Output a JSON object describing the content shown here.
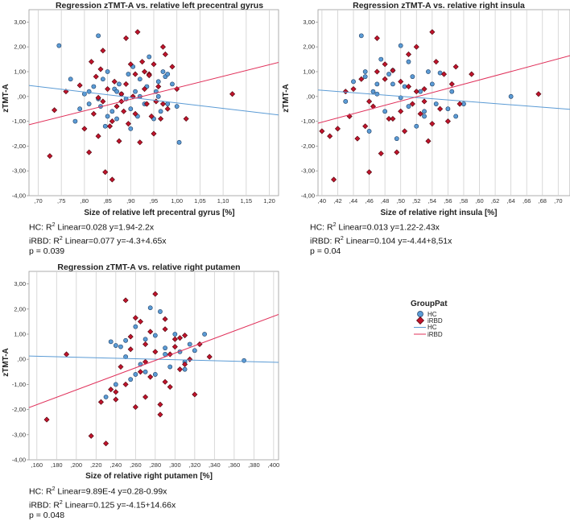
{
  "legend": {
    "title": "GroupPat",
    "items": [
      {
        "label": "HC",
        "kind": "marker",
        "shape": "circle",
        "color": "#5b9bd5"
      },
      {
        "label": "iRBD",
        "kind": "marker",
        "shape": "diamond",
        "color": "#c0142c"
      },
      {
        "label": "HC",
        "kind": "line",
        "color": "#5b9bd5"
      },
      {
        "label": "iRBD",
        "kind": "line",
        "color": "#e0305a"
      }
    ]
  },
  "colors": {
    "hc_fill": "#5b9bd5",
    "hc_stroke": "#1f3e63",
    "irbd_fill": "#c0142c",
    "irbd_stroke": "#4a0008",
    "hc_line": "#5b9bd5",
    "irbd_line": "#e0305a",
    "grid": "#cfcfcf",
    "frame": "#9a9a9a"
  },
  "chart_data": [
    {
      "type": "scatter",
      "title": "Regression zTMT-A vs. relative left precentral gyrus",
      "xlabel": "Size of relative left precentral gyrus [%]",
      "ylabel": "zTMT-A",
      "xlim": [
        0.68,
        1.22
      ],
      "ylim": [
        -4.0,
        3.5
      ],
      "xticks": [
        0.7,
        0.75,
        0.8,
        0.85,
        0.9,
        0.95,
        1.0,
        1.05,
        1.1,
        1.15,
        1.2
      ],
      "xtick_labels": [
        ",70",
        ",75",
        ",80",
        ",85",
        ",90",
        ",95",
        "1,00",
        "1,05",
        "1,10",
        "1,15",
        "1,20"
      ],
      "yticks": [
        -4,
        -3,
        -2,
        -1,
        0,
        1,
        2,
        3
      ],
      "ytick_labels": [
        "-4,00",
        "-3,00",
        "-2,00",
        "-1,00",
        ",00",
        "1,00",
        "2,00",
        "3,00"
      ],
      "stats": {
        "hc_prefix": "HC: R",
        "hc_suffix": " Linear=0.028 y=1.94-2.2x",
        "irbd_prefix": "iRBD: R",
        "irbd_suffix": " Linear=0.077 y=-4.3+4.65x",
        "sup": "2",
        "p": "p = 0.039"
      },
      "fits": [
        {
          "name": "HC",
          "intercept": 1.94,
          "slope": -2.2
        },
        {
          "name": "iRBD",
          "intercept": -4.3,
          "slope": 4.65
        }
      ],
      "series": [
        {
          "name": "HC",
          "marker": "circle",
          "x": [
            0.745,
            0.77,
            0.78,
            0.79,
            0.8,
            0.81,
            0.82,
            0.83,
            0.835,
            0.84,
            0.845,
            0.85,
            0.86,
            0.865,
            0.87,
            0.875,
            0.88,
            0.89,
            0.895,
            0.9,
            0.905,
            0.91,
            0.915,
            0.92,
            0.93,
            0.935,
            0.94,
            0.95,
            0.955,
            0.96,
            0.965,
            0.97,
            0.975,
            0.98,
            0.99,
            1.0,
            1.005,
            0.83,
            0.85,
            0.87,
            0.92,
            0.96,
            0.98,
            0.81,
            0.9
          ],
          "y": [
            2.05,
            0.7,
            -1.0,
            -0.5,
            0.1,
            0.2,
            0.4,
            2.45,
            -0.4,
            0.7,
            -1.2,
            1.0,
            -0.6,
            0.3,
            -0.9,
            0.5,
            0.1,
            -0.1,
            0.9,
            -0.5,
            1.2,
            0.2,
            -0.8,
            0.7,
            -0.3,
            0.4,
            1.6,
            -0.9,
            0.2,
            0.0,
            -0.6,
            1.0,
            0.8,
            -0.3,
            0.5,
            -0.4,
            -1.85,
            -0.1,
            -0.8,
            0.2,
            0.0,
            0.6,
            0.9,
            -0.3,
            -1.3
          ]
        },
        {
          "name": "iRBD",
          "marker": "diamond",
          "x": [
            0.725,
            0.735,
            0.76,
            0.79,
            0.8,
            0.81,
            0.815,
            0.82,
            0.825,
            0.83,
            0.835,
            0.84,
            0.845,
            0.85,
            0.855,
            0.86,
            0.865,
            0.87,
            0.875,
            0.88,
            0.885,
            0.89,
            0.895,
            0.9,
            0.905,
            0.91,
            0.915,
            0.92,
            0.925,
            0.93,
            0.935,
            0.94,
            0.945,
            0.95,
            0.955,
            0.96,
            0.965,
            0.97,
            0.975,
            0.98,
            0.99,
            1.0,
            1.02,
            1.12,
            0.84,
            0.86,
            0.88,
            0.91,
            0.93,
            0.95,
            0.97,
            0.83,
            0.89,
            0.94
          ],
          "y": [
            -2.4,
            -0.55,
            0.2,
            0.45,
            -1.3,
            -2.25,
            1.4,
            -0.7,
            0.8,
            -1.6,
            1.1,
            -0.2,
            -3.05,
            0.3,
            -1.2,
            -3.35,
            0.6,
            -0.4,
            -1.8,
            0.1,
            -0.6,
            2.35,
            -1.1,
            1.3,
            0.0,
            0.9,
            2.6,
            -1.85,
            1.4,
            0.3,
            -0.3,
            0.9,
            -0.8,
            1.3,
            -0.2,
            0.4,
            -0.9,
            2.0,
            1.7,
            -0.5,
            1.2,
            0.3,
            -0.9,
            0.1,
            1.85,
            -1.0,
            -0.2,
            -0.7,
            1.0,
            -1.5,
            -0.3,
            -0.05,
            0.5,
            0.85
          ]
        }
      ]
    },
    {
      "type": "scatter",
      "title": "Regression zTMT-A vs. relative right insula",
      "xlabel": "Size of relative right insula [%]",
      "ylabel": "zTMT-A",
      "xlim": [
        0.395,
        0.715
      ],
      "ylim": [
        -4.0,
        3.5
      ],
      "xticks": [
        0.4,
        0.42,
        0.44,
        0.46,
        0.48,
        0.5,
        0.52,
        0.54,
        0.56,
        0.58,
        0.6,
        0.62,
        0.64,
        0.66,
        0.68,
        0.7
      ],
      "xtick_labels": [
        ",40",
        ",42",
        ",44",
        ",46",
        ",48",
        ",50",
        ",52",
        ",54",
        ",56",
        ",58",
        ",60",
        ",62",
        ",64",
        ",66",
        ",68",
        ",70"
      ],
      "yticks": [
        -4,
        -3,
        -2,
        -1,
        0,
        1,
        2,
        3
      ],
      "ytick_labels": [
        "-4,00",
        "-3,00",
        "-2,00",
        "-1,00",
        ",00",
        "1,00",
        "2,00",
        "3,00"
      ],
      "stats": {
        "hc_prefix": "HC: R",
        "hc_suffix": " Linear=0.013 y=1.22-2.43x",
        "irbd_prefix": "iRBD: R",
        "irbd_suffix": " Linear=0.104 y=-4.44+8,51x",
        "sup": "2",
        "p": "p = 0.04"
      },
      "fits": [
        {
          "name": "HC",
          "intercept": 1.22,
          "slope": -2.43
        },
        {
          "name": "iRBD",
          "intercept": -4.44,
          "slope": 8.51
        }
      ],
      "series": [
        {
          "name": "HC",
          "marker": "circle",
          "x": [
            0.43,
            0.44,
            0.45,
            0.455,
            0.46,
            0.465,
            0.47,
            0.475,
            0.48,
            0.485,
            0.49,
            0.495,
            0.5,
            0.505,
            0.51,
            0.515,
            0.52,
            0.525,
            0.53,
            0.535,
            0.54,
            0.545,
            0.55,
            0.56,
            0.565,
            0.57,
            0.58,
            0.64,
            0.47,
            0.49,
            0.51,
            0.53,
            0.455,
            0.5
          ],
          "y": [
            -0.2,
            0.6,
            2.45,
            0.8,
            -1.4,
            0.2,
            0.5,
            1.5,
            -0.6,
            0.9,
            1.05,
            -1.7,
            2.05,
            0.4,
            -0.4,
            0.8,
            -1.2,
            0.2,
            -0.8,
            1.0,
            0.5,
            -0.3,
            0.95,
            -0.5,
            0.2,
            -0.8,
            -0.3,
            0.0,
            0.1,
            0.5,
            1.4,
            -0.6,
            1.0,
            -0.05
          ]
        },
        {
          "name": "iRBD",
          "marker": "diamond",
          "x": [
            0.4,
            0.41,
            0.415,
            0.42,
            0.43,
            0.435,
            0.44,
            0.445,
            0.45,
            0.455,
            0.46,
            0.465,
            0.47,
            0.475,
            0.48,
            0.485,
            0.49,
            0.495,
            0.5,
            0.505,
            0.51,
            0.515,
            0.52,
            0.525,
            0.53,
            0.535,
            0.54,
            0.545,
            0.55,
            0.555,
            0.56,
            0.565,
            0.57,
            0.575,
            0.59,
            0.675,
            0.46,
            0.48,
            0.5,
            0.52,
            0.54,
            0.47,
            0.49,
            0.51,
            0.53
          ],
          "y": [
            -1.4,
            -1.6,
            -3.35,
            -1.3,
            0.2,
            -0.8,
            0.3,
            -1.7,
            0.7,
            -1.2,
            -3.05,
            -0.4,
            2.35,
            -2.3,
            1.3,
            -0.9,
            1.05,
            -2.25,
            0.6,
            -1.4,
            1.7,
            -0.3,
            2.0,
            -0.7,
            0.3,
            -1.8,
            2.6,
            1.4,
            -0.5,
            0.9,
            -1.0,
            0.5,
            1.2,
            -0.3,
            0.9,
            0.1,
            -0.2,
            0.7,
            -0.6,
            0.2,
            -1.1,
            1.0,
            -0.9,
            0.4,
            -0.2
          ]
        }
      ]
    },
    {
      "type": "scatter",
      "title": "Regression zTMT-A vs. relative right putamen",
      "xlabel": "Size of relative right putamen [%]",
      "ylabel": "zTMT-A",
      "xlim": [
        0.152,
        0.405
      ],
      "ylim": [
        -4.0,
        3.5
      ],
      "xticks": [
        0.16,
        0.18,
        0.2,
        0.22,
        0.24,
        0.26,
        0.28,
        0.3,
        0.32,
        0.34,
        0.36,
        0.38,
        0.4
      ],
      "xtick_labels": [
        ",160",
        ",180",
        ",200",
        ",220",
        ",240",
        ",260",
        ",280",
        ",300",
        ",320",
        ",340",
        ",360",
        ",380",
        ",400"
      ],
      "yticks": [
        -4,
        -3,
        -2,
        -1,
        0,
        1,
        2,
        3
      ],
      "ytick_labels": [
        "-4,00",
        "-3,00",
        "-2,00",
        "-1,00",
        ",00",
        "1,00",
        "2,00",
        "3,00"
      ],
      "stats": {
        "hc_prefix": "HC: R",
        "hc_suffix": " Linear=9.89E-4 y=0.28-0.99x",
        "irbd_prefix": "iRBD: R",
        "irbd_suffix": " Linear=0.125 y=-4.15+14.66x",
        "sup": "2",
        "p": "p = 0.048"
      },
      "fits": [
        {
          "name": "HC",
          "intercept": 0.28,
          "slope": -0.99
        },
        {
          "name": "iRBD",
          "intercept": -4.15,
          "slope": 14.66
        }
      ],
      "series": [
        {
          "name": "HC",
          "marker": "circle",
          "x": [
            0.23,
            0.235,
            0.24,
            0.245,
            0.25,
            0.255,
            0.26,
            0.265,
            0.27,
            0.275,
            0.28,
            0.285,
            0.29,
            0.295,
            0.3,
            0.305,
            0.31,
            0.315,
            0.32,
            0.33,
            0.37,
            0.25,
            0.27,
            0.29,
            0.31,
            0.26,
            0.28,
            0.24
          ],
          "y": [
            -1.5,
            0.7,
            -1.0,
            0.5,
            0.1,
            -0.8,
            1.3,
            -0.2,
            0.8,
            2.05,
            -0.6,
            1.9,
            0.2,
            -0.3,
            1.0,
            0.3,
            -0.1,
            0.6,
            0.35,
            1.0,
            -0.05,
            0.75,
            -0.5,
            0.45,
            -0.4,
            -0.6,
            0.95,
            0.55
          ]
        },
        {
          "name": "iRBD",
          "marker": "diamond",
          "x": [
            0.17,
            0.19,
            0.215,
            0.225,
            0.23,
            0.235,
            0.24,
            0.245,
            0.25,
            0.255,
            0.26,
            0.265,
            0.27,
            0.275,
            0.28,
            0.285,
            0.29,
            0.295,
            0.3,
            0.305,
            0.31,
            0.315,
            0.32,
            0.325,
            0.335,
            0.25,
            0.26,
            0.27,
            0.28,
            0.29,
            0.3,
            0.24,
            0.255,
            0.265,
            0.275,
            0.285,
            0.295,
            0.305,
            0.27,
            0.29,
            0.31
          ],
          "y": [
            -2.4,
            0.2,
            -3.05,
            -1.7,
            -3.35,
            -1.2,
            -1.6,
            -0.3,
            2.35,
            0.4,
            -1.9,
            1.5,
            0.6,
            -0.7,
            2.6,
            -2.2,
            1.2,
            -1.1,
            0.8,
            -0.4,
            0.95,
            0.0,
            -1.4,
            0.6,
            0.1,
            -1.0,
            1.65,
            -0.1,
            0.3,
            -0.9,
            0.5,
            -1.3,
            0.9,
            -0.5,
            1.1,
            -1.8,
            0.2,
            0.85,
            -1.5,
            1.6,
            -0.2
          ]
        }
      ]
    }
  ]
}
